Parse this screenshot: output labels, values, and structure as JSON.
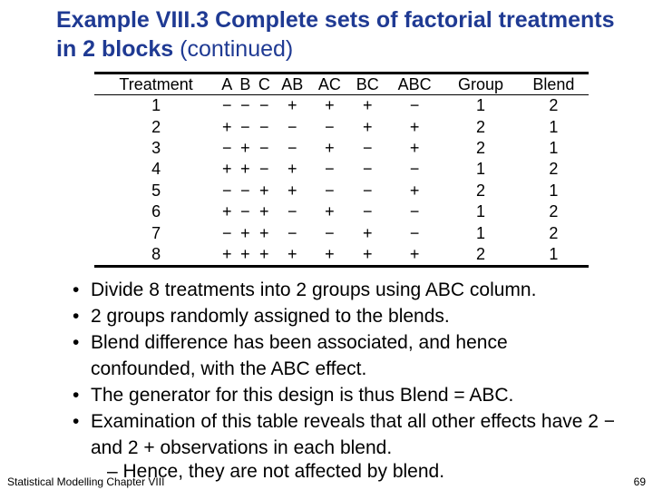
{
  "title": {
    "bold": "Example VIII.3 Complete sets of factorial treatments in 2 blocks",
    "normal": " (continued)"
  },
  "table": {
    "headers": [
      "Treatment",
      "A",
      "B",
      "C",
      "AB",
      "AC",
      "BC",
      "ABC",
      "Group",
      "Blend"
    ],
    "rows": [
      [
        "1",
        "−",
        "−",
        "−",
        "+",
        "+",
        "+",
        "−",
        "1",
        "2"
      ],
      [
        "2",
        "+",
        "−",
        "−",
        "−",
        "−",
        "+",
        "+",
        "2",
        "1"
      ],
      [
        "3",
        "−",
        "+",
        "−",
        "−",
        "+",
        "−",
        "+",
        "2",
        "1"
      ],
      [
        "4",
        "+",
        "+",
        "−",
        "+",
        "−",
        "−",
        "−",
        "1",
        "2"
      ],
      [
        "5",
        "−",
        "−",
        "+",
        "+",
        "−",
        "−",
        "+",
        "2",
        "1"
      ],
      [
        "6",
        "+",
        "−",
        "+",
        "−",
        "+",
        "−",
        "−",
        "1",
        "2"
      ],
      [
        "7",
        "−",
        "+",
        "+",
        "−",
        "−",
        "+",
        "−",
        "1",
        "2"
      ],
      [
        "8",
        "+",
        "+",
        "+",
        "+",
        "+",
        "+",
        "+",
        "2",
        "1"
      ]
    ]
  },
  "bullets": [
    "Divide 8 treatments into 2 groups using ABC column.",
    "2 groups randomly assigned to the blends.",
    "Blend difference has been associated, and hence confounded, with the ABC effect.",
    "The generator for this design is thus Blend = ABC.",
    "Examination of this table reveals that all other effects have 2 − and 2 + observations in each blend."
  ],
  "bullet_symbol": "•",
  "sub_bullet": "– Hence, they are not affected by blend.",
  "footer": {
    "left": "Statistical Modelling Chapter VIII",
    "page": "69"
  },
  "colors": {
    "title": "#1f3a93",
    "text": "#000000",
    "background": "#ffffff"
  }
}
